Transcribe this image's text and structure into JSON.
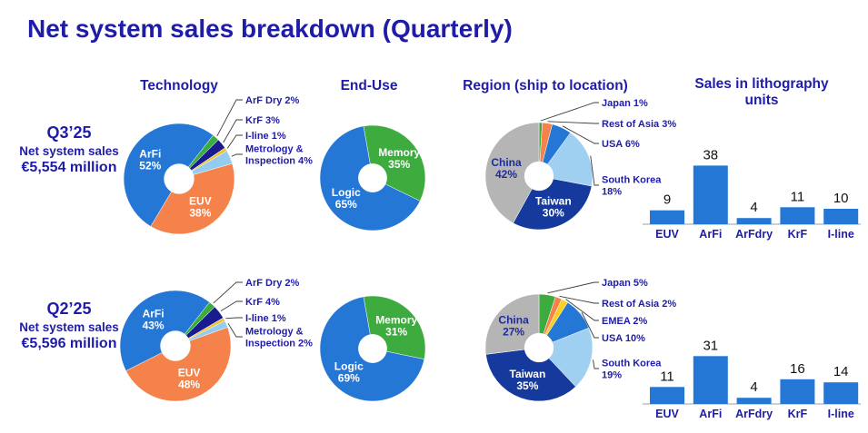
{
  "title": "Net system sales breakdown (Quarterly)",
  "columns": [
    {
      "id": "technology",
      "label": "Technology"
    },
    {
      "id": "end-use",
      "label": "End-Use"
    },
    {
      "id": "region",
      "label": "Region (ship to location)"
    },
    {
      "id": "litho-units",
      "label": "Sales in lithography units"
    }
  ],
  "rows": [
    {
      "quarter": "Q3’25",
      "caption": "Net system sales",
      "amount": "€5,554 million"
    },
    {
      "quarter": "Q2’25",
      "caption": "Net system sales",
      "amount": "€5,596 million"
    }
  ],
  "style": {
    "heading_color": "#1F1CA8",
    "navy_label_color": "#1F1CA8",
    "inside_label_color": "#FFFFFF",
    "bar_value_color": "#111111",
    "leader_line_color": "#3C3C3C",
    "axis_line_color": "#BFBFBF",
    "background": "#FFFFFF"
  },
  "chart_data": [
    {
      "id": "technology-q3",
      "type": "donut",
      "title": "Technology",
      "quarter": "Q3’25",
      "start_angle": 38,
      "hole_ratio": 0.27,
      "segments": [
        {
          "label": "ArF Dry",
          "pct": 2,
          "color": "#3EAB3E",
          "label_lines": [
            "ArF Dry 2%"
          ],
          "label_placement": "outside"
        },
        {
          "label": "KrF",
          "pct": 3,
          "color": "#191B8F",
          "label_lines": [
            "KrF 3%"
          ],
          "label_placement": "outside"
        },
        {
          "label": "I-line",
          "pct": 1,
          "color": "#EFC32F",
          "label_lines": [
            "I-line 1%"
          ],
          "label_placement": "outside"
        },
        {
          "label": "Metrology & Inspection",
          "pct": 4,
          "color": "#94CBEF",
          "label_lines": [
            "Metrology &",
            "Inspection 4%"
          ],
          "label_placement": "outside"
        },
        {
          "label": "EUV",
          "pct": 38,
          "color": "#F6824B",
          "label_lines": [
            "EUV",
            "38%"
          ],
          "label_placement": "inside",
          "label_color": "#FFFFFF"
        },
        {
          "label": "ArFi",
          "pct": 52,
          "color": "#2577D6",
          "label_lines": [
            "ArFi",
            "52%"
          ],
          "label_placement": "inside",
          "label_color": "#FFFFFF"
        }
      ]
    },
    {
      "id": "end-use-q3",
      "type": "donut",
      "title": "End-Use",
      "quarter": "Q3’25",
      "start_angle": -10,
      "hole_ratio": 0.27,
      "segments": [
        {
          "label": "Memory",
          "pct": 35,
          "color": "#3EAB3E",
          "label_lines": [
            "Memory",
            "35%"
          ],
          "label_placement": "inside",
          "label_color": "#FFFFFF"
        },
        {
          "label": "Logic",
          "pct": 65,
          "color": "#2577D6",
          "label_lines": [
            "Logic",
            "65%"
          ],
          "label_placement": "inside",
          "label_color": "#FFFFFF"
        }
      ]
    },
    {
      "id": "region-q3",
      "type": "donut",
      "title": "Region (ship to location)",
      "quarter": "Q3’25",
      "start_angle": 0,
      "hole_ratio": 0.27,
      "segments": [
        {
          "label": "Japan",
          "pct": 1,
          "color": "#3EAB3E",
          "label_lines": [
            "Japan 1%"
          ],
          "label_placement": "outside"
        },
        {
          "label": "Rest of Asia",
          "pct": 3,
          "color": "#F6824B",
          "label_lines": [
            "Rest of Asia 3%"
          ],
          "label_placement": "outside"
        },
        {
          "label": "USA",
          "pct": 6,
          "color": "#2577D6",
          "label_lines": [
            "USA 6%"
          ],
          "label_placement": "outside"
        },
        {
          "label": "South Korea",
          "pct": 18,
          "color": "#9FD0F2",
          "label_lines": [
            "South Korea",
            "18%"
          ],
          "label_placement": "outside"
        },
        {
          "label": "Taiwan",
          "pct": 30,
          "color": "#16399E",
          "label_lines": [
            "Taiwan",
            "30%"
          ],
          "label_placement": "inside",
          "label_color": "#FFFFFF"
        },
        {
          "label": "China",
          "pct": 42,
          "color": "#B5B5B5",
          "label_lines": [
            "China",
            "42%"
          ],
          "label_placement": "inside",
          "label_color": "#1F2B9E"
        }
      ]
    },
    {
      "id": "litho-units-q3",
      "type": "bar",
      "title": "Sales in lithography units",
      "quarter": "Q3’25",
      "categories": [
        "EUV",
        "ArFi",
        "ArFdry",
        "KrF",
        "I-line"
      ],
      "values": [
        9,
        38,
        4,
        11,
        10
      ],
      "bar_color": "#2577D6",
      "ylim": [
        0,
        40
      ]
    },
    {
      "id": "technology-q2",
      "type": "donut",
      "title": "Technology",
      "quarter": "Q2’25",
      "start_angle": 38,
      "hole_ratio": 0.27,
      "segments": [
        {
          "label": "ArF Dry",
          "pct": 2,
          "color": "#3EAB3E",
          "label_lines": [
            "ArF Dry 2%"
          ],
          "label_placement": "outside"
        },
        {
          "label": "KrF",
          "pct": 4,
          "color": "#191B8F",
          "label_lines": [
            "KrF 4%"
          ],
          "label_placement": "outside"
        },
        {
          "label": "I-line",
          "pct": 1,
          "color": "#EFC32F",
          "label_lines": [
            "I-line 1%"
          ],
          "label_placement": "outside"
        },
        {
          "label": "Metrology & Inspection",
          "pct": 2,
          "color": "#94CBEF",
          "label_lines": [
            "Metrology &",
            "Inspection 2%"
          ],
          "label_placement": "outside"
        },
        {
          "label": "EUV",
          "pct": 48,
          "color": "#F6824B",
          "label_lines": [
            "EUV",
            "48%"
          ],
          "label_placement": "inside",
          "label_color": "#FFFFFF"
        },
        {
          "label": "ArFi",
          "pct": 43,
          "color": "#2577D6",
          "label_lines": [
            "ArFi",
            "43%"
          ],
          "label_placement": "inside",
          "label_color": "#FFFFFF"
        }
      ]
    },
    {
      "id": "end-use-q2",
      "type": "donut",
      "title": "End-Use",
      "quarter": "Q2’25",
      "start_angle": -10,
      "hole_ratio": 0.27,
      "segments": [
        {
          "label": "Memory",
          "pct": 31,
          "color": "#3EAB3E",
          "label_lines": [
            "Memory",
            "31%"
          ],
          "label_placement": "inside",
          "label_color": "#FFFFFF"
        },
        {
          "label": "Logic",
          "pct": 69,
          "color": "#2577D6",
          "label_lines": [
            "Logic",
            "69%"
          ],
          "label_placement": "inside",
          "label_color": "#FFFFFF"
        }
      ]
    },
    {
      "id": "region-q2",
      "type": "donut",
      "title": "Region (ship to location)",
      "quarter": "Q2’25",
      "start_angle": 0,
      "hole_ratio": 0.27,
      "segments": [
        {
          "label": "Japan",
          "pct": 5,
          "color": "#3EAB3E",
          "label_lines": [
            "Japan 5%"
          ],
          "label_placement": "outside"
        },
        {
          "label": "Rest of Asia",
          "pct": 2,
          "color": "#F6824B",
          "label_lines": [
            "Rest of Asia 2%"
          ],
          "label_placement": "outside"
        },
        {
          "label": "EMEA",
          "pct": 2,
          "color": "#F7D021",
          "label_lines": [
            "EMEA 2%"
          ],
          "label_placement": "outside"
        },
        {
          "label": "USA",
          "pct": 10,
          "color": "#2577D6",
          "label_lines": [
            "USA 10%"
          ],
          "label_placement": "outside"
        },
        {
          "label": "South Korea",
          "pct": 19,
          "color": "#9FD0F2",
          "label_lines": [
            "South Korea",
            "19%"
          ],
          "label_placement": "outside"
        },
        {
          "label": "Taiwan",
          "pct": 35,
          "color": "#16399E",
          "label_lines": [
            "Taiwan",
            "35%"
          ],
          "label_placement": "inside",
          "label_color": "#FFFFFF"
        },
        {
          "label": "China",
          "pct": 27,
          "color": "#B5B5B5",
          "label_lines": [
            "China",
            "27%"
          ],
          "label_placement": "inside",
          "label_color": "#1F2B9E"
        }
      ]
    },
    {
      "id": "litho-units-q2",
      "type": "bar",
      "title": "Sales in lithography units",
      "quarter": "Q2’25",
      "categories": [
        "EUV",
        "ArFi",
        "ArFdry",
        "KrF",
        "I-line"
      ],
      "values": [
        11,
        31,
        4,
        16,
        14
      ],
      "bar_color": "#2577D6",
      "ylim": [
        0,
        40
      ]
    }
  ]
}
